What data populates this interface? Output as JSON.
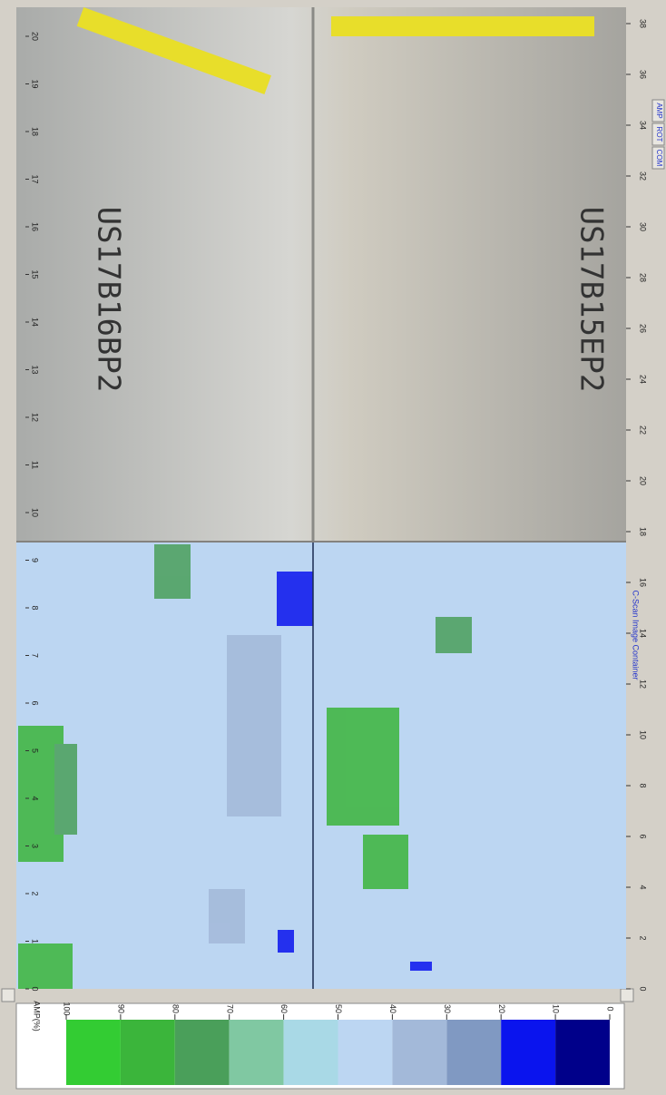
{
  "legend": {
    "label": "AMP(%)",
    "ticks": [
      100,
      90,
      80,
      70,
      60,
      50,
      40,
      30,
      20,
      10,
      0
    ],
    "colors": [
      "#33cc33",
      "#3bb53b",
      "#4a9f5a",
      "#80c8a2",
      "#a9d9e6",
      "#bcd6f2",
      "#a3b9d9",
      "#8099c2",
      "#0a14ee",
      "#00008a"
    ]
  },
  "axes": {
    "vertical": {
      "lim": [
        0,
        20
      ],
      "ticks": [
        0,
        1,
        2,
        3,
        4,
        5,
        6,
        7,
        8,
        9,
        10,
        11,
        12,
        13,
        14,
        15,
        16,
        17,
        18,
        19,
        20
      ]
    },
    "horizontal": {
      "lim": [
        0,
        38
      ],
      "ticks": [
        0,
        2,
        4,
        6,
        8,
        10,
        12,
        14,
        16,
        18,
        20,
        22,
        24,
        26,
        28,
        30,
        32,
        34,
        36,
        38
      ]
    }
  },
  "container_label": "C-Scan Image Container",
  "toolbar": [
    "AMP",
    "ROT",
    "COM"
  ],
  "photo": {
    "labels": [
      "US17B16BP2",
      "US17B15EP2"
    ]
  }
}
